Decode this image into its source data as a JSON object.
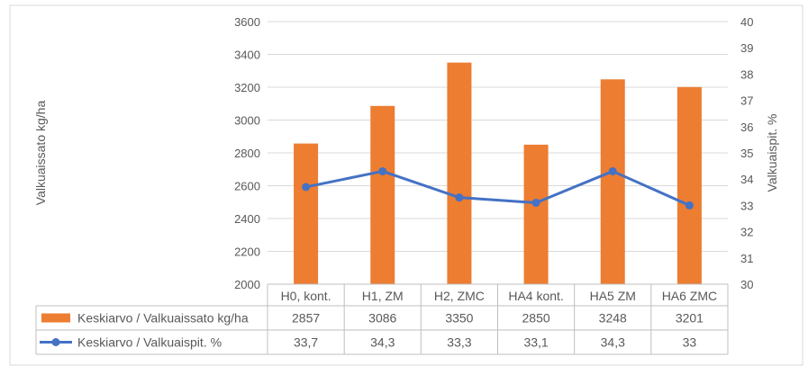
{
  "chart_data": {
    "type": "bar",
    "categories": [
      "H0, kont.",
      "H1, ZM",
      "H2, ZMC",
      "HA4 kont.",
      "HA5 ZM",
      "HA6 ZMC"
    ],
    "series": [
      {
        "name": "Keskiarvo  / Valkuaissato kg/ha",
        "type": "bar",
        "axis": "left",
        "color": "#ED7D31",
        "values": [
          2857,
          3086,
          3350,
          2850,
          3248,
          3201
        ],
        "table_labels": [
          "2857",
          "3086",
          "3350",
          "2850",
          "3248",
          "3201"
        ]
      },
      {
        "name": "Keskiarvo  / Valkuaispit. %",
        "type": "line",
        "axis": "right",
        "color": "#4472C4",
        "values": [
          33.7,
          34.3,
          33.3,
          33.1,
          34.3,
          33
        ],
        "table_labels": [
          "33,7",
          "34,3",
          "33,3",
          "33,1",
          "34,3",
          "33"
        ]
      }
    ],
    "ylabel": "Valkuaissato kg/ha",
    "y2label": "Valkuaispit. %",
    "ylim": [
      2000,
      3600
    ],
    "y2lim": [
      30,
      40
    ],
    "yticks": [
      "2000",
      "2200",
      "2400",
      "2600",
      "2800",
      "3000",
      "3200",
      "3400",
      "3600"
    ],
    "y2ticks": [
      "30",
      "31",
      "32",
      "33",
      "34",
      "35",
      "36",
      "37",
      "38",
      "39",
      "40"
    ],
    "grid": true,
    "data_table": true
  }
}
